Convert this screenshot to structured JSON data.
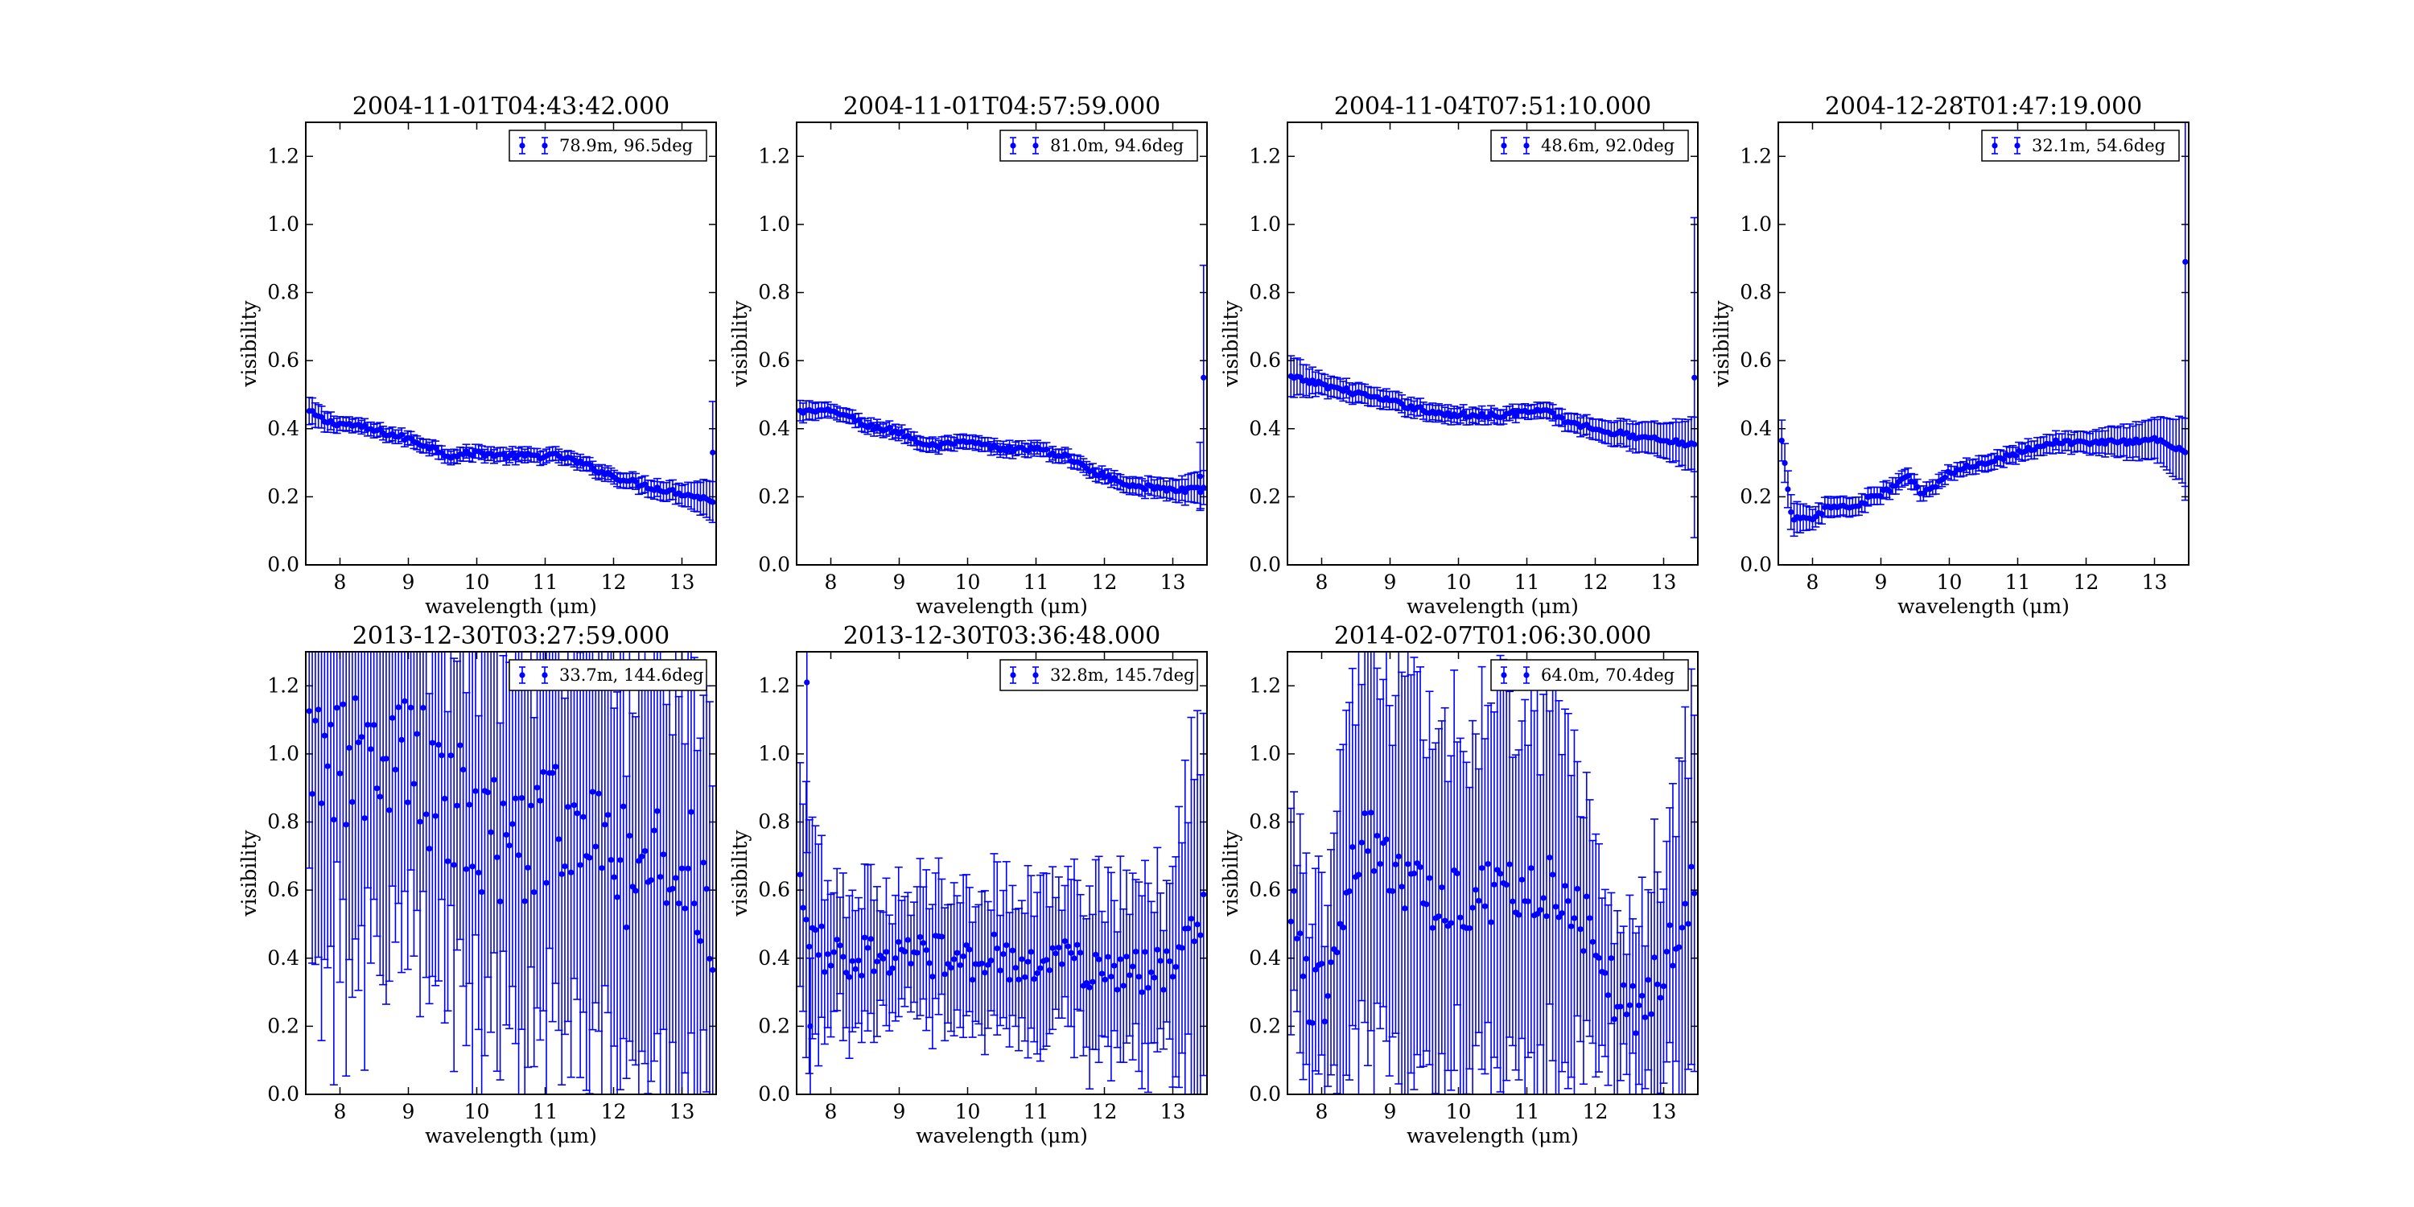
{
  "chart_data": [
    {
      "type": "scatter",
      "title": "2004-11-01T04:43:42.000",
      "xlabel": "wavelength (μm)",
      "ylabel": "visibility",
      "xlim": [
        7.5,
        13.5
      ],
      "ylim": [
        0.0,
        1.3
      ],
      "grid": false,
      "legend_position": "upper-right",
      "series": [
        {
          "name": "78.9m, 96.5deg",
          "color": "#0000ff",
          "x_start": 7.55,
          "x_end": 13.45,
          "anchors": [
            [
              7.55,
              0.45
            ],
            [
              7.8,
              0.42
            ],
            [
              8.2,
              0.41
            ],
            [
              8.6,
              0.39
            ],
            [
              9.0,
              0.37
            ],
            [
              9.4,
              0.34
            ],
            [
              9.6,
              0.32
            ],
            [
              10.0,
              0.33
            ],
            [
              10.4,
              0.32
            ],
            [
              10.8,
              0.32
            ],
            [
              11.2,
              0.32
            ],
            [
              11.5,
              0.3
            ],
            [
              12.0,
              0.26
            ],
            [
              12.5,
              0.23
            ],
            [
              13.0,
              0.21
            ],
            [
              13.45,
              0.19
            ]
          ],
          "err_anchors": [
            [
              7.55,
              0.04
            ],
            [
              8.0,
              0.02
            ],
            [
              12.0,
              0.02
            ],
            [
              13.0,
              0.03
            ],
            [
              13.45,
              0.06
            ]
          ]
        }
      ],
      "outliers": [
        {
          "x": 13.45,
          "y": 0.33,
          "err": 0.15
        }
      ],
      "x_ticks": [
        8,
        9,
        10,
        11,
        12,
        13
      ],
      "y_ticks": [
        0.0,
        0.2,
        0.4,
        0.6,
        0.8,
        1.0,
        1.2
      ]
    },
    {
      "type": "scatter",
      "title": "2004-11-01T04:57:59.000",
      "xlabel": "wavelength (μm)",
      "ylabel": "visibility",
      "xlim": [
        7.5,
        13.5
      ],
      "ylim": [
        0.0,
        1.3
      ],
      "grid": false,
      "legend_position": "upper-right",
      "series": [
        {
          "name": "81.0m, 94.6deg",
          "color": "#0000ff",
          "x_start": 7.55,
          "x_end": 13.45,
          "anchors": [
            [
              7.55,
              0.45
            ],
            [
              7.8,
              0.45
            ],
            [
              8.1,
              0.45
            ],
            [
              8.5,
              0.41
            ],
            [
              9.0,
              0.39
            ],
            [
              9.4,
              0.35
            ],
            [
              9.6,
              0.35
            ],
            [
              10.0,
              0.36
            ],
            [
              10.5,
              0.34
            ],
            [
              11.0,
              0.34
            ],
            [
              11.4,
              0.32
            ],
            [
              12.0,
              0.26
            ],
            [
              12.5,
              0.23
            ],
            [
              13.0,
              0.22
            ],
            [
              13.45,
              0.22
            ]
          ],
          "err_anchors": [
            [
              7.55,
              0.03
            ],
            [
              8.0,
              0.02
            ],
            [
              12.0,
              0.02
            ],
            [
              13.0,
              0.03
            ],
            [
              13.45,
              0.05
            ]
          ]
        }
      ],
      "outliers": [
        {
          "x": 13.45,
          "y": 0.55,
          "err": 0.33
        },
        {
          "x": 13.4,
          "y": 0.26,
          "err": 0.1
        }
      ],
      "x_ticks": [
        8,
        9,
        10,
        11,
        12,
        13
      ],
      "y_ticks": [
        0.0,
        0.2,
        0.4,
        0.6,
        0.8,
        1.0,
        1.2
      ]
    },
    {
      "type": "scatter",
      "title": "2004-11-04T07:51:10.000",
      "xlabel": "wavelength (μm)",
      "ylabel": "visibility",
      "xlim": [
        7.5,
        13.5
      ],
      "ylim": [
        0.0,
        1.3
      ],
      "grid": false,
      "legend_position": "upper-right",
      "series": [
        {
          "name": "48.6m, 92.0deg",
          "color": "#0000ff",
          "x_start": 7.55,
          "x_end": 13.45,
          "anchors": [
            [
              7.55,
              0.55
            ],
            [
              7.8,
              0.54
            ],
            [
              8.2,
              0.52
            ],
            [
              8.6,
              0.5
            ],
            [
              9.0,
              0.48
            ],
            [
              9.4,
              0.46
            ],
            [
              9.8,
              0.44
            ],
            [
              10.2,
              0.44
            ],
            [
              10.6,
              0.44
            ],
            [
              11.0,
              0.45
            ],
            [
              11.3,
              0.45
            ],
            [
              11.6,
              0.42
            ],
            [
              12.0,
              0.4
            ],
            [
              12.5,
              0.38
            ],
            [
              13.0,
              0.37
            ],
            [
              13.45,
              0.35
            ]
          ],
          "err_anchors": [
            [
              7.55,
              0.06
            ],
            [
              8.0,
              0.03
            ],
            [
              11.0,
              0.02
            ],
            [
              12.0,
              0.03
            ],
            [
              13.0,
              0.05
            ],
            [
              13.45,
              0.08
            ]
          ]
        }
      ],
      "outliers": [
        {
          "x": 13.45,
          "y": 0.55,
          "err": 0.47
        }
      ],
      "x_ticks": [
        8,
        9,
        10,
        11,
        12,
        13
      ],
      "y_ticks": [
        0.0,
        0.2,
        0.4,
        0.6,
        0.8,
        1.0,
        1.2
      ]
    },
    {
      "type": "scatter",
      "title": "2004-12-28T01:47:19.000",
      "xlabel": "wavelength (μm)",
      "ylabel": "visibility",
      "xlim": [
        7.5,
        13.5
      ],
      "ylim": [
        0.0,
        1.3
      ],
      "grid": false,
      "legend_position": "upper-right",
      "series": [
        {
          "name": "32.1m, 54.6deg",
          "color": "#0000ff",
          "x_start": 7.55,
          "x_end": 13.45,
          "anchors": [
            [
              7.55,
              0.36
            ],
            [
              7.7,
              0.14
            ],
            [
              8.0,
              0.13
            ],
            [
              8.2,
              0.17
            ],
            [
              8.6,
              0.17
            ],
            [
              9.0,
              0.21
            ],
            [
              9.2,
              0.23
            ],
            [
              9.4,
              0.26
            ],
            [
              9.6,
              0.21
            ],
            [
              9.8,
              0.23
            ],
            [
              10.0,
              0.27
            ],
            [
              10.5,
              0.3
            ],
            [
              11.0,
              0.33
            ],
            [
              11.5,
              0.36
            ],
            [
              12.0,
              0.36
            ],
            [
              12.5,
              0.36
            ],
            [
              13.0,
              0.37
            ],
            [
              13.45,
              0.33
            ]
          ],
          "err_anchors": [
            [
              7.55,
              0.06
            ],
            [
              8.0,
              0.03
            ],
            [
              10.0,
              0.02
            ],
            [
              12.0,
              0.03
            ],
            [
              13.0,
              0.06
            ],
            [
              13.45,
              0.1
            ]
          ]
        }
      ],
      "outliers": [
        {
          "x": 13.45,
          "y": 0.89,
          "err": 0.7
        }
      ],
      "x_ticks": [
        8,
        9,
        10,
        11,
        12,
        13
      ],
      "y_ticks": [
        0.0,
        0.2,
        0.4,
        0.6,
        0.8,
        1.0,
        1.2
      ]
    },
    {
      "type": "scatter",
      "title": "2013-12-30T03:27:59.000",
      "xlabel": "wavelength (μm)",
      "ylabel": "visibility",
      "xlim": [
        7.5,
        13.5
      ],
      "ylim": [
        0.0,
        1.3
      ],
      "grid": false,
      "legend_position": "upper-right",
      "series": [
        {
          "name": "33.7m, 144.6deg",
          "color": "#0000ff",
          "x_start": 7.55,
          "x_end": 13.45,
          "anchors": [
            [
              7.55,
              0.95
            ],
            [
              8.0,
              0.95
            ],
            [
              8.5,
              1.05
            ],
            [
              9.0,
              1.0
            ],
            [
              9.5,
              0.85
            ],
            [
              10.0,
              0.8
            ],
            [
              10.5,
              0.75
            ],
            [
              11.0,
              0.78
            ],
            [
              11.5,
              0.75
            ],
            [
              12.0,
              0.7
            ],
            [
              12.5,
              0.72
            ],
            [
              13.0,
              0.7
            ],
            [
              13.45,
              0.55
            ]
          ],
          "err_anchors": [
            [
              7.55,
              0.6
            ],
            [
              13.45,
              0.6
            ]
          ],
          "scatter": 0.22
        }
      ],
      "outliers": [],
      "x_ticks": [
        8,
        9,
        10,
        11,
        12,
        13
      ],
      "y_ticks": [
        0.0,
        0.2,
        0.4,
        0.6,
        0.8,
        1.0,
        1.2
      ]
    },
    {
      "type": "scatter",
      "title": "2013-12-30T03:36:48.000",
      "xlabel": "wavelength (μm)",
      "ylabel": "visibility",
      "xlim": [
        7.5,
        13.5
      ],
      "ylim": [
        0.0,
        1.3
      ],
      "grid": false,
      "legend_position": "upper-right",
      "series": [
        {
          "name": "32.8m, 145.7deg",
          "color": "#0000ff",
          "x_start": 7.55,
          "x_end": 13.45,
          "anchors": [
            [
              7.55,
              0.58
            ],
            [
              7.7,
              0.45
            ],
            [
              8.0,
              0.42
            ],
            [
              8.5,
              0.4
            ],
            [
              9.0,
              0.42
            ],
            [
              9.5,
              0.4
            ],
            [
              10.0,
              0.4
            ],
            [
              10.5,
              0.4
            ],
            [
              11.0,
              0.4
            ],
            [
              11.5,
              0.38
            ],
            [
              12.0,
              0.36
            ],
            [
              12.5,
              0.36
            ],
            [
              13.0,
              0.38
            ],
            [
              13.45,
              0.55
            ]
          ],
          "err_anchors": [
            [
              7.55,
              0.35
            ],
            [
              8.0,
              0.2
            ],
            [
              9.0,
              0.18
            ],
            [
              11.0,
              0.22
            ],
            [
              13.0,
              0.25
            ],
            [
              13.45,
              0.6
            ]
          ],
          "scatter": 0.07
        }
      ],
      "outliers": [
        {
          "x": 7.65,
          "y": 1.21,
          "err": 0.5
        },
        {
          "x": 7.7,
          "y": 0.2,
          "err": 0.2
        }
      ],
      "x_ticks": [
        8,
        9,
        10,
        11,
        12,
        13
      ],
      "y_ticks": [
        0.0,
        0.2,
        0.4,
        0.6,
        0.8,
        1.0,
        1.2
      ]
    },
    {
      "type": "scatter",
      "title": "2014-02-07T01:06:30.000",
      "xlabel": "wavelength (μm)",
      "ylabel": "visibility",
      "xlim": [
        7.5,
        13.5
      ],
      "ylim": [
        0.0,
        1.3
      ],
      "grid": false,
      "legend_position": "upper-right",
      "series": [
        {
          "name": "64.0m, 70.4deg",
          "color": "#0000ff",
          "x_start": 7.55,
          "x_end": 13.45,
          "anchors": [
            [
              7.55,
              0.6
            ],
            [
              7.8,
              0.3
            ],
            [
              8.1,
              0.3
            ],
            [
              8.4,
              0.65
            ],
            [
              8.7,
              0.75
            ],
            [
              9.0,
              0.65
            ],
            [
              9.5,
              0.58
            ],
            [
              10.0,
              0.58
            ],
            [
              10.5,
              0.6
            ],
            [
              11.0,
              0.62
            ],
            [
              11.5,
              0.6
            ],
            [
              12.0,
              0.45
            ],
            [
              12.3,
              0.28
            ],
            [
              12.6,
              0.25
            ],
            [
              13.0,
              0.4
            ],
            [
              13.45,
              0.6
            ]
          ],
          "err_anchors": [
            [
              7.55,
              0.3
            ],
            [
              8.0,
              0.25
            ],
            [
              8.5,
              0.55
            ],
            [
              10.0,
              0.5
            ],
            [
              11.5,
              0.55
            ],
            [
              12.2,
              0.2
            ],
            [
              13.0,
              0.35
            ],
            [
              13.45,
              0.6
            ]
          ],
          "scatter": 0.1
        }
      ],
      "outliers": [],
      "x_ticks": [
        8,
        9,
        10,
        11,
        12,
        13
      ],
      "y_ticks": [
        0.0,
        0.2,
        0.4,
        0.6,
        0.8,
        1.0,
        1.2
      ]
    }
  ]
}
